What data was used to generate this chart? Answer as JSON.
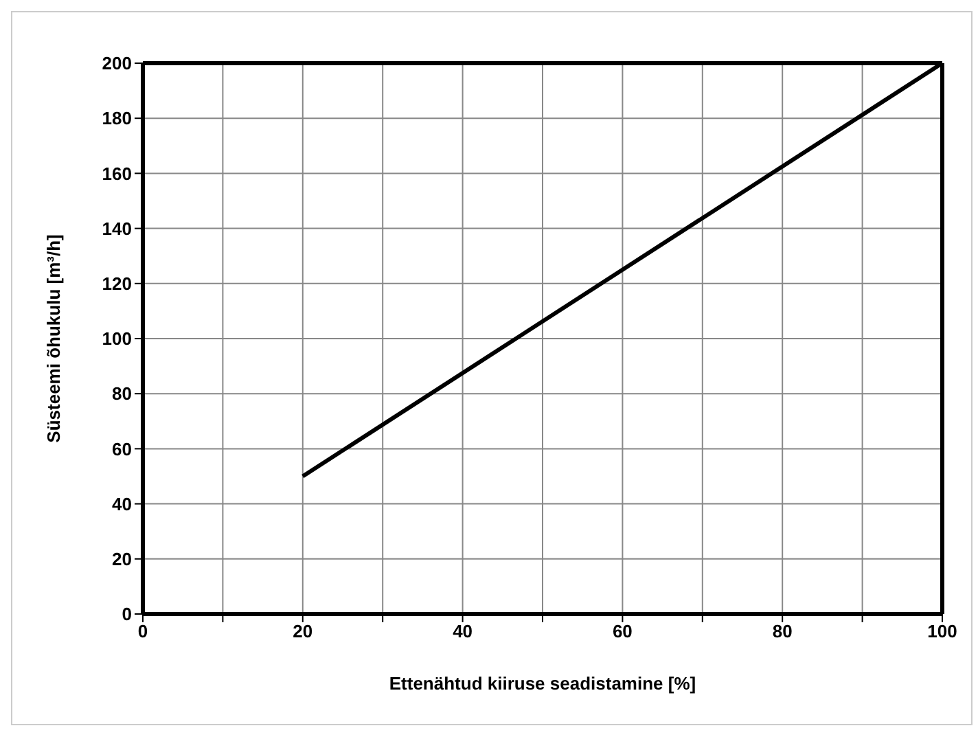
{
  "chart_data": {
    "type": "line",
    "xlabel": "Ettenähtud kiiruse seadistamine [%]",
    "ylabel": "Süsteemi õhukulu [m³/h]",
    "x": [
      20,
      100
    ],
    "series": [
      {
        "color": "#000000",
        "values": [
          50,
          200
        ]
      }
    ],
    "xlim": [
      0,
      100
    ],
    "ylim": [
      0,
      200
    ],
    "xticks": [
      0,
      {
        "value": 10,
        "label": null
      },
      20,
      {
        "value": 30,
        "label": null
      },
      40,
      {
        "value": 50,
        "label": null
      },
      60,
      {
        "value": 70,
        "label": null
      },
      80,
      {
        "value": 90,
        "label": null
      },
      100
    ],
    "yticks": [
      0,
      20,
      40,
      60,
      80,
      100,
      120,
      140,
      160,
      180,
      200
    ],
    "grid": true,
    "marker": "none",
    "line_style": "solid"
  }
}
